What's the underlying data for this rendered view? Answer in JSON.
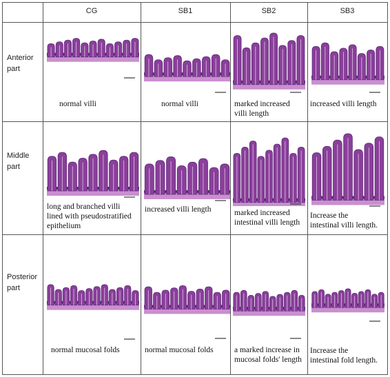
{
  "columns": [
    "CG",
    "SB1",
    "SB2",
    "SB3"
  ],
  "rows": [
    {
      "label": "Anterior\npart",
      "captions": [
        "normal villi",
        "normal villi",
        "marked increased\nvilli length",
        "increased villi length"
      ]
    },
    {
      "label": "Middle\npart",
      "captions": [
        "long and branched villi\nlined with  pseudostratified\nepithelium",
        "increased villi length",
        "marked increased\nintestinal villi length",
        "Increase the\nintestinal villi length."
      ]
    },
    {
      "label": "Posterior\npart",
      "captions": [
        "normal mucosal folds",
        "normal mucosal folds",
        "a marked increase in\nmucosal folds' length",
        "Increase the\nintestinal fold length."
      ]
    }
  ],
  "colors": {
    "villi": "#8a3f9a",
    "villi_dark": "#5e2a7a",
    "tissue": "#c98fcf",
    "background": "#ffffff"
  }
}
